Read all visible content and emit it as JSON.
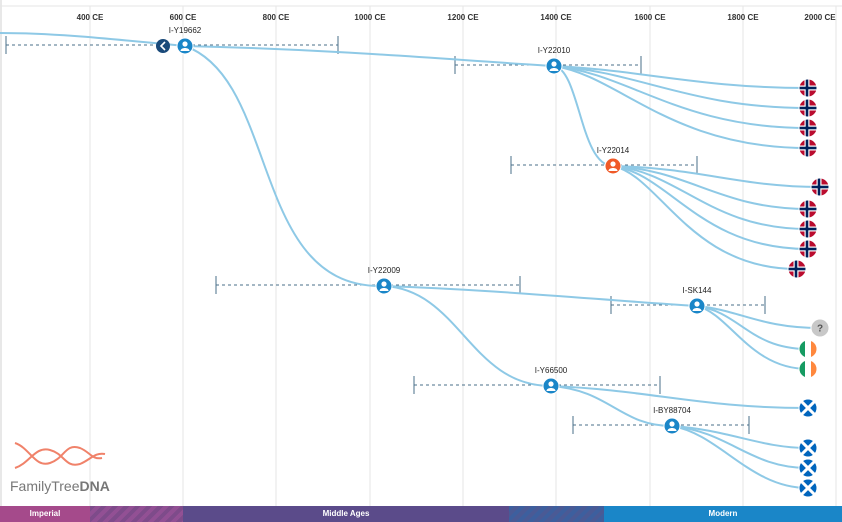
{
  "timeline": {
    "axis_labels": [
      "400 CE",
      "600 CE",
      "800 CE",
      "1000 CE",
      "1200 CE",
      "1400 CE",
      "1600 CE",
      "1800 CE",
      "2000 CE"
    ]
  },
  "nodes": [
    {
      "id": "I-Y19662",
      "label": "I-Y19662",
      "type": "ancestor",
      "color": "#1a86c8"
    },
    {
      "id": "I-Y22010",
      "label": "I-Y22010",
      "type": "ancestor",
      "color": "#1a86c8"
    },
    {
      "id": "I-Y22014",
      "label": "I-Y22014",
      "type": "ancestor",
      "color": "#f05a28"
    },
    {
      "id": "I-Y22009",
      "label": "I-Y22009",
      "type": "ancestor",
      "color": "#1a86c8"
    },
    {
      "id": "I-SK144",
      "label": "I-SK144",
      "type": "ancestor",
      "color": "#1a86c8"
    },
    {
      "id": "I-Y66500",
      "label": "I-Y66500",
      "type": "ancestor",
      "color": "#1a86c8"
    },
    {
      "id": "I-BY88704",
      "label": "I-BY88704",
      "type": "ancestor",
      "color": "#1a86c8"
    }
  ],
  "leaves": [
    {
      "flag": "norway"
    },
    {
      "flag": "norway"
    },
    {
      "flag": "norway"
    },
    {
      "flag": "norway"
    },
    {
      "flag": "norway"
    },
    {
      "flag": "norway"
    },
    {
      "flag": "norway"
    },
    {
      "flag": "norway"
    },
    {
      "flag": "norway"
    },
    {
      "flag": "unknown",
      "label": "?"
    },
    {
      "flag": "ireland"
    },
    {
      "flag": "ireland"
    },
    {
      "flag": "scotland"
    },
    {
      "flag": "scotland"
    },
    {
      "flag": "scotland"
    },
    {
      "flag": "scotland"
    }
  ],
  "eras": [
    {
      "label": "Imperial",
      "color": "#a54a8b"
    },
    {
      "label": "Middle Ages",
      "color": "#5b4b8a"
    },
    {
      "label": "Modern",
      "color": "#1a86c8"
    }
  ],
  "brand": {
    "name_part1": "FamilyTree",
    "name_part2": "DNA",
    "logo_color": "#f0826a"
  },
  "colors": {
    "branch": "#8ec9e6",
    "grid": "#e6e6e6",
    "ci": "#4a6f8a",
    "back_button": "#1a4a7a"
  }
}
